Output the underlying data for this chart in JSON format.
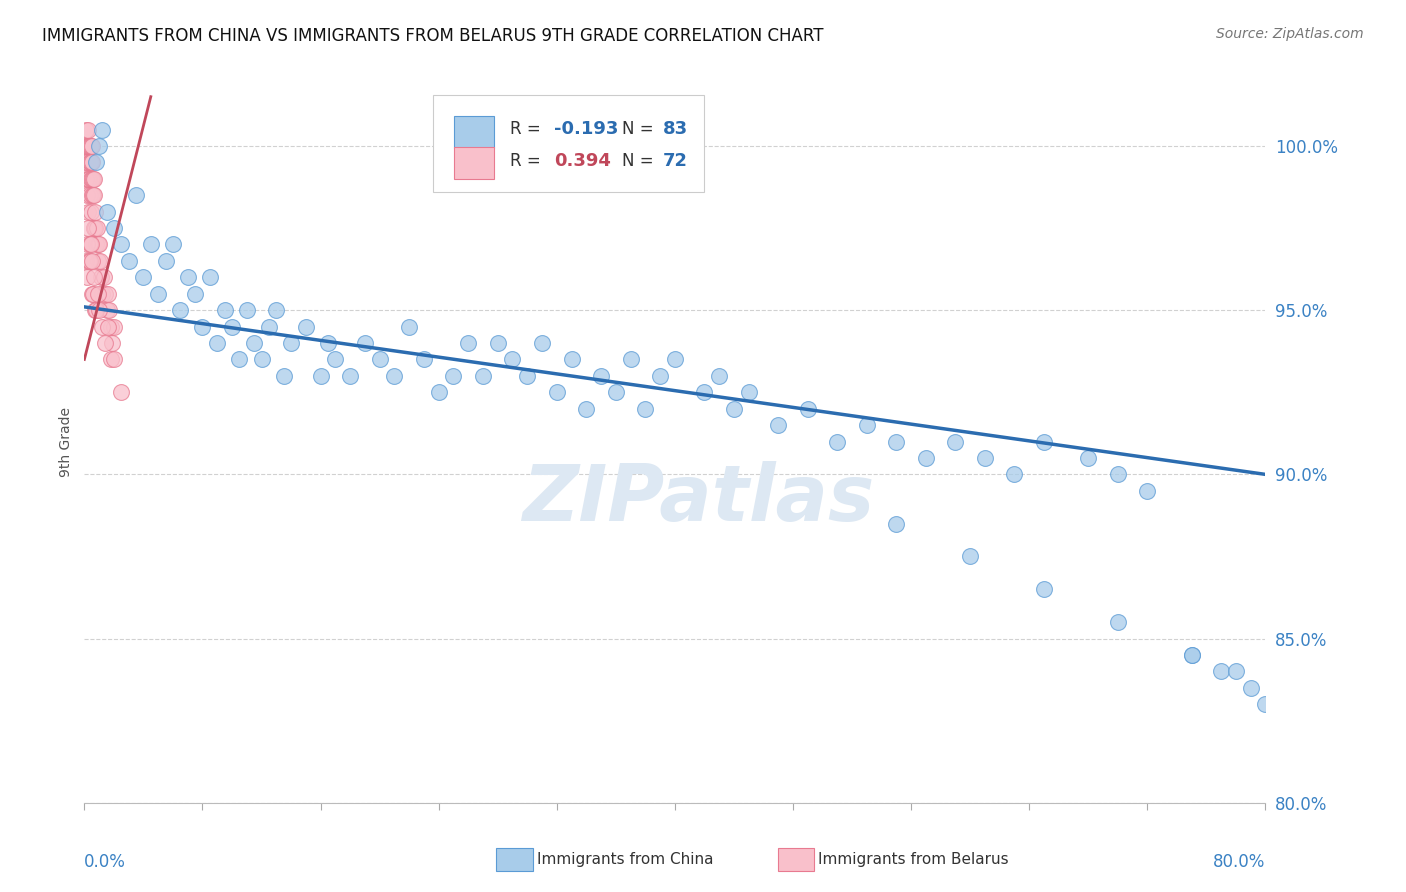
{
  "title": "IMMIGRANTS FROM CHINA VS IMMIGRANTS FROM BELARUS 9TH GRADE CORRELATION CHART",
  "source": "Source: ZipAtlas.com",
  "ylabel": "9th Grade",
  "r_china": -0.193,
  "n_china": 83,
  "r_belarus": 0.394,
  "n_belarus": 72,
  "x_lim": [
    0.0,
    80.0
  ],
  "y_lim": [
    80.0,
    102.0
  ],
  "y_ticks": [
    80.0,
    85.0,
    90.0,
    95.0,
    100.0
  ],
  "y_tick_labels": [
    "80.0%",
    "85.0%",
    "90.0%",
    "95.0%",
    "100.0%"
  ],
  "color_china": "#A8CCEA",
  "color_china_edge": "#5B9BD5",
  "color_china_line": "#2B6CB0",
  "color_belarus": "#F9C0CB",
  "color_belarus_edge": "#E87A90",
  "color_belarus_line": "#C0475A",
  "color_r_china": "#2B6CB0",
  "color_r_belarus": "#C0475A",
  "color_n": "#2B6CB0",
  "watermark": "ZIPatlas",
  "china_x": [
    1.5,
    2.0,
    2.5,
    3.0,
    3.5,
    4.0,
    4.5,
    5.0,
    5.5,
    6.0,
    6.5,
    7.0,
    7.5,
    8.0,
    8.5,
    9.0,
    9.5,
    10.0,
    10.5,
    11.0,
    11.5,
    12.0,
    12.5,
    13.0,
    13.5,
    14.0,
    15.0,
    16.0,
    16.5,
    17.0,
    18.0,
    19.0,
    20.0,
    21.0,
    22.0,
    23.0,
    24.0,
    25.0,
    26.0,
    27.0,
    28.0,
    29.0,
    30.0,
    31.0,
    32.0,
    33.0,
    34.0,
    35.0,
    36.0,
    37.0,
    38.0,
    39.0,
    40.0,
    42.0,
    43.0,
    44.0,
    45.0,
    47.0,
    49.0,
    51.0,
    53.0,
    55.0,
    57.0,
    59.0,
    61.0,
    63.0,
    65.0,
    68.0,
    70.0,
    72.0,
    75.0,
    77.0,
    79.0,
    80.0,
    55.0,
    60.0,
    65.0,
    70.0,
    75.0,
    78.0,
    0.8,
    1.0,
    1.2
  ],
  "china_y": [
    98.0,
    97.5,
    97.0,
    96.5,
    98.5,
    96.0,
    97.0,
    95.5,
    96.5,
    97.0,
    95.0,
    96.0,
    95.5,
    94.5,
    96.0,
    94.0,
    95.0,
    94.5,
    93.5,
    95.0,
    94.0,
    93.5,
    94.5,
    95.0,
    93.0,
    94.0,
    94.5,
    93.0,
    94.0,
    93.5,
    93.0,
    94.0,
    93.5,
    93.0,
    94.5,
    93.5,
    92.5,
    93.0,
    94.0,
    93.0,
    94.0,
    93.5,
    93.0,
    94.0,
    92.5,
    93.5,
    92.0,
    93.0,
    92.5,
    93.5,
    92.0,
    93.0,
    93.5,
    92.5,
    93.0,
    92.0,
    92.5,
    91.5,
    92.0,
    91.0,
    91.5,
    91.0,
    90.5,
    91.0,
    90.5,
    90.0,
    91.0,
    90.5,
    90.0,
    89.5,
    84.5,
    84.0,
    83.5,
    83.0,
    88.5,
    87.5,
    86.5,
    85.5,
    84.5,
    84.0,
    99.5,
    100.0,
    100.5
  ],
  "belarus_x": [
    0.05,
    0.08,
    0.1,
    0.12,
    0.15,
    0.15,
    0.18,
    0.2,
    0.22,
    0.25,
    0.25,
    0.28,
    0.3,
    0.32,
    0.35,
    0.35,
    0.38,
    0.4,
    0.42,
    0.45,
    0.45,
    0.48,
    0.5,
    0.52,
    0.55,
    0.55,
    0.58,
    0.6,
    0.62,
    0.65,
    0.65,
    0.68,
    0.7,
    0.75,
    0.8,
    0.85,
    0.9,
    0.95,
    1.0,
    1.05,
    1.1,
    1.2,
    1.3,
    1.4,
    1.5,
    1.6,
    1.7,
    1.8,
    1.9,
    2.0,
    0.1,
    0.15,
    0.2,
    0.25,
    0.3,
    0.35,
    0.4,
    0.45,
    0.5,
    0.55,
    0.6,
    0.65,
    0.7,
    0.8,
    0.9,
    1.0,
    1.2,
    1.4,
    1.6,
    1.8,
    2.0,
    2.5
  ],
  "belarus_y": [
    99.5,
    100.0,
    99.0,
    100.5,
    99.5,
    98.5,
    100.0,
    99.5,
    98.0,
    100.0,
    99.0,
    100.5,
    99.0,
    100.0,
    99.5,
    98.5,
    100.0,
    99.5,
    98.0,
    99.5,
    100.0,
    99.0,
    98.5,
    99.5,
    99.0,
    100.0,
    98.5,
    99.0,
    97.5,
    99.0,
    98.5,
    97.5,
    98.0,
    97.5,
    97.0,
    97.5,
    97.0,
    96.5,
    97.0,
    96.5,
    96.0,
    95.5,
    96.0,
    95.5,
    95.0,
    95.5,
    95.0,
    94.5,
    94.0,
    94.5,
    96.5,
    97.0,
    96.0,
    97.5,
    96.5,
    97.0,
    96.5,
    97.0,
    95.5,
    96.5,
    95.5,
    96.0,
    95.0,
    95.0,
    95.5,
    95.0,
    94.5,
    94.0,
    94.5,
    93.5,
    93.5,
    92.5
  ],
  "china_line_x0": 0.0,
  "china_line_y0": 95.1,
  "china_line_x1": 80.0,
  "china_line_y1": 90.0,
  "belarus_line_x0": 0.0,
  "belarus_line_y0": 93.5,
  "belarus_line_x1": 4.5,
  "belarus_line_y1": 101.5
}
